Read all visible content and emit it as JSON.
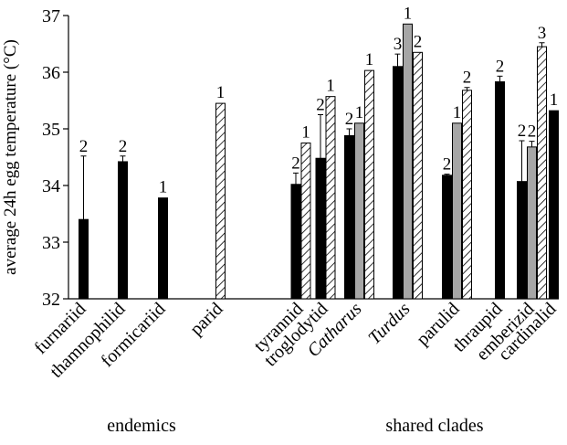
{
  "chart_data": {
    "type": "bar",
    "ylabel": "average 24h egg temperature (°C)",
    "ylim": [
      32,
      37
    ],
    "yticks": [
      "32",
      "33",
      "34",
      "35",
      "36",
      "37"
    ],
    "grid": false,
    "groups": [
      {
        "name": "endemics",
        "categories": [
          {
            "label": "furnariid",
            "italic": false,
            "bars": [
              {
                "style": "solid",
                "value": 33.4,
                "error": 1.12,
                "n": "2"
              }
            ]
          },
          {
            "label": "thamnophilid",
            "italic": false,
            "bars": [
              {
                "style": "solid",
                "value": 34.42,
                "error": 0.1,
                "n": "2"
              }
            ]
          },
          {
            "label": "formicariid",
            "italic": false,
            "bars": [
              {
                "style": "solid",
                "value": 33.78,
                "error": null,
                "n": "1"
              }
            ]
          },
          {
            "label": "parid",
            "italic": false,
            "bars": [
              {
                "style": "hatched",
                "value": 35.45,
                "error": null,
                "n": "1"
              }
            ]
          }
        ]
      },
      {
        "name": "shared clades",
        "categories": [
          {
            "label": "tyrannid",
            "italic": false,
            "bars": [
              {
                "style": "solid",
                "value": 34.02,
                "error": 0.2,
                "n": "2"
              },
              {
                "style": "hatched",
                "value": 34.75,
                "error": null,
                "n": "1"
              }
            ]
          },
          {
            "label": "troglodytid",
            "italic": false,
            "bars": [
              {
                "style": "solid",
                "value": 34.48,
                "error": 0.77,
                "n": "2"
              },
              {
                "style": "hatched",
                "value": 35.57,
                "error": null,
                "n": "1"
              }
            ]
          },
          {
            "label": "Catharus",
            "italic": true,
            "bars": [
              {
                "style": "solid",
                "value": 34.88,
                "error": 0.12,
                "n": "2"
              },
              {
                "style": "gray",
                "value": 35.1,
                "error": null,
                "n": "1"
              },
              {
                "style": "hatched",
                "value": 36.03,
                "error": null,
                "n": "1"
              }
            ]
          },
          {
            "label": "Turdus",
            "italic": true,
            "bars": [
              {
                "style": "solid",
                "value": 36.1,
                "error": 0.22,
                "n": "3"
              },
              {
                "style": "gray",
                "value": 36.85,
                "error": null,
                "n": "1"
              },
              {
                "style": "hatched",
                "value": 36.35,
                "error": null,
                "n": "2"
              }
            ]
          },
          {
            "label": "parulid",
            "italic": false,
            "bars": [
              {
                "style": "solid",
                "value": 34.18,
                "error": 0.02,
                "n": "2"
              },
              {
                "style": "gray",
                "value": 35.1,
                "error": null,
                "n": "1"
              },
              {
                "style": "hatched",
                "value": 35.68,
                "error": 0.05,
                "n": "2"
              }
            ]
          },
          {
            "label": "thraupid",
            "italic": false,
            "bars": [
              {
                "style": "solid",
                "value": 35.83,
                "error": 0.1,
                "n": "2"
              }
            ]
          },
          {
            "label": "emberizid",
            "italic": false,
            "bars": [
              {
                "style": "solid",
                "value": 34.07,
                "error": 0.72,
                "n": "2"
              },
              {
                "style": "gray",
                "value": 34.68,
                "error": 0.1,
                "n": "2"
              },
              {
                "style": "hatched",
                "value": 36.45,
                "error": 0.07,
                "n": "3"
              }
            ]
          },
          {
            "label": "cardinalid",
            "italic": false,
            "bars": [
              {
                "style": "solid",
                "value": 35.32,
                "error": null,
                "n": "1"
              }
            ]
          }
        ]
      }
    ],
    "series_colors": {
      "solid": "#000000",
      "gray": "#a6a6a6",
      "hatched": "#ffffff"
    }
  }
}
